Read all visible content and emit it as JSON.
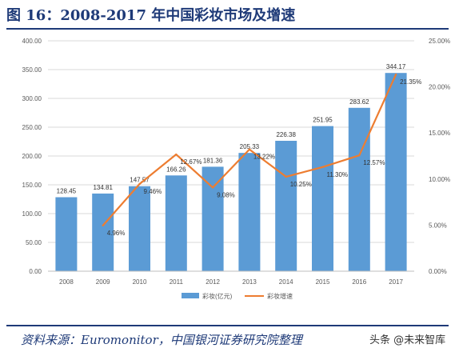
{
  "page": {
    "title": "图 16：2008-2017 年中国彩妆市场及增速",
    "source": "资料来源：Euromonitor，中国银河证券研究院整理",
    "watermark": "头条 @未来智库"
  },
  "colors": {
    "bar": "#5b9bd5",
    "line": "#ed7d31",
    "title": "#1e3a78",
    "grid": "#d9d9d9",
    "axis_text": "#595959"
  },
  "chart_data": {
    "type": "bar",
    "categories": [
      "2008",
      "2009",
      "2010",
      "2011",
      "2012",
      "2013",
      "2014",
      "2015",
      "2016",
      "2017"
    ],
    "series": [
      {
        "name": "彩妆(亿元)",
        "type": "bar",
        "axis": "left",
        "values": [
          128.45,
          134.81,
          147.57,
          166.26,
          181.36,
          205.33,
          226.38,
          251.95,
          283.62,
          344.17
        ],
        "labels": [
          "128.45",
          "134.81",
          "147.57",
          "166.26",
          "181.36",
          "205.33",
          "226.38",
          "251.95",
          "283.62",
          "344.17"
        ]
      },
      {
        "name": "彩妆增速",
        "type": "line",
        "axis": "right",
        "values": [
          null,
          4.96,
          9.46,
          12.67,
          9.08,
          13.22,
          10.25,
          11.3,
          12.57,
          21.35
        ],
        "labels": [
          "",
          "4.96%",
          "9.46%",
          "12.67%",
          "9.08%",
          "13.22%",
          "10.25%",
          "11.30%",
          "12.57%",
          "21.35%"
        ]
      }
    ],
    "y_left": {
      "ylim": [
        0,
        400
      ],
      "ticks": [
        "0.00",
        "50.00",
        "100.00",
        "150.00",
        "200.00",
        "250.00",
        "300.00",
        "350.00",
        "400.00"
      ]
    },
    "y_right": {
      "ylim": [
        0,
        25
      ],
      "ticks": [
        "0.00%",
        "5.00%",
        "10.00%",
        "15.00%",
        "20.00%",
        "25.00%"
      ]
    },
    "grid": true,
    "legend": {
      "placement": "bottom-center"
    }
  }
}
